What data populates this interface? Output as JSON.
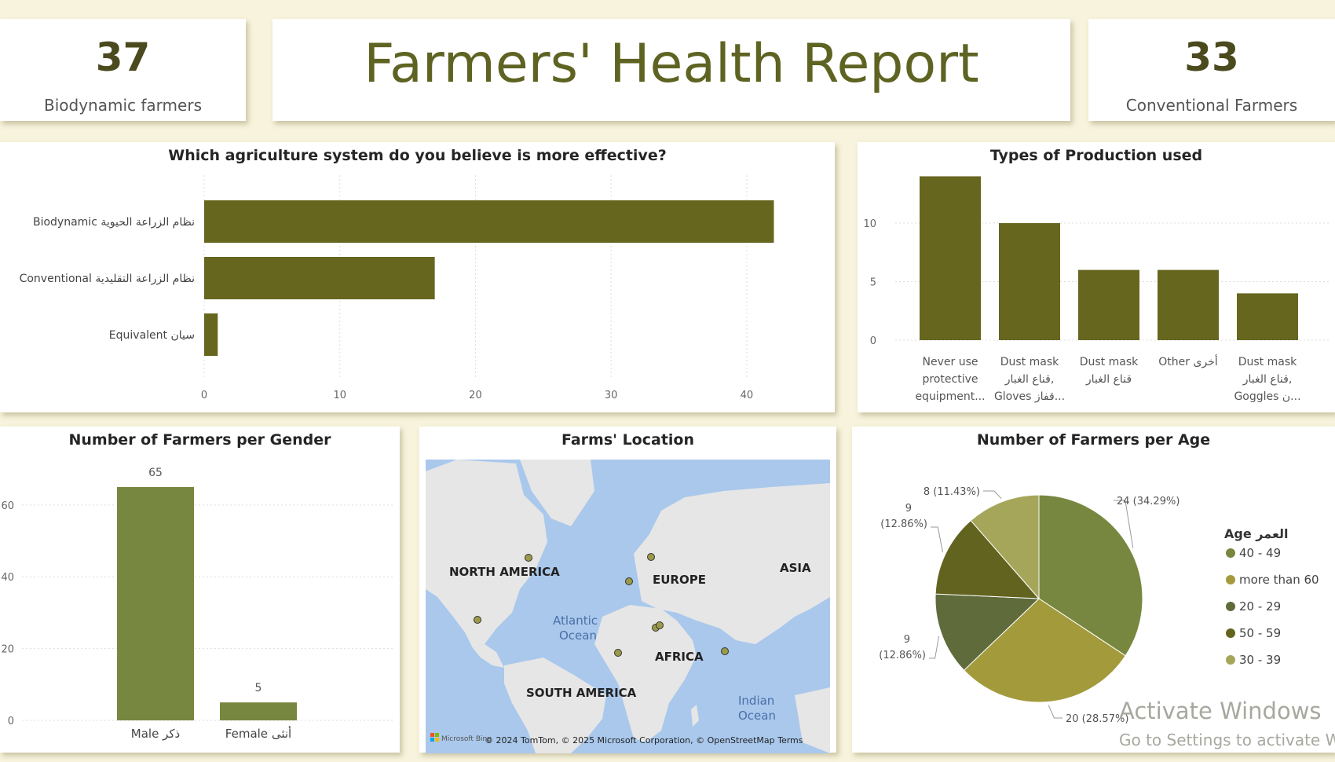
{
  "kpis": [
    {
      "value": "37",
      "label": "Biodynamic farmers"
    },
    {
      "value": "33",
      "label": "Conventional Farmers"
    }
  ],
  "report": {
    "title": "Farmers' Health Report"
  },
  "colors": {
    "olive": "#66661f",
    "male": "#78873f",
    "background": "#f7f3dc"
  },
  "chart_data": [
    {
      "id": "effective",
      "type": "bar",
      "orientation": "horizontal",
      "title": "Which agriculture system do you believe is more effective?",
      "categories": [
        "Biodynamic نظام الزراعة الحيوية",
        "Conventional نظام الزراعة التقليدية",
        "Equivalent سيان"
      ],
      "values": [
        42,
        17,
        1
      ],
      "xlim": [
        0,
        44
      ],
      "xticks": [
        "0",
        "10",
        "20",
        "30",
        "40"
      ],
      "grid": true
    },
    {
      "id": "production",
      "type": "bar",
      "title": "Types of Production used",
      "categories": [
        [
          "Never use",
          "protective",
          "equipment..."
        ],
        [
          "Dust mask",
          "قناع الغبار,",
          "Gloves قفاز..."
        ],
        [
          "Dust mask",
          "قناع الغبار"
        ],
        [
          "Other أخرى"
        ],
        [
          "Dust mask",
          "قناع الغبار,",
          "Goggles ن..."
        ]
      ],
      "values": [
        14,
        10,
        6,
        6,
        4
      ],
      "ylim": [
        0,
        14.5
      ],
      "yticks": [
        "0",
        "5",
        "10"
      ],
      "grid": true
    },
    {
      "id": "gender",
      "type": "bar",
      "title": "Number of Farmers per Gender",
      "categories": [
        "Male ذكر",
        "Female أنثى"
      ],
      "values": [
        65,
        5
      ],
      "data_labels": [
        "65",
        "5"
      ],
      "ylim": [
        0,
        65
      ],
      "yticks": [
        "0",
        "20",
        "40",
        "60"
      ],
      "grid": true
    },
    {
      "id": "age",
      "type": "pie",
      "title": "Number of Farmers per Age",
      "legend_title": "Age العمر",
      "legend_position": "right",
      "slices": [
        {
          "label": "40 - 49",
          "value": 24,
          "data_label": "24 (34.29%)",
          "color": "#78873f"
        },
        {
          "label": "more than 60",
          "value": 20,
          "data_label": "20 (28.57%)",
          "color": "#a39a3c"
        },
        {
          "label": "20 - 29",
          "value": 9,
          "data_label": "9 (12.86%)",
          "color": "#5f6b3b"
        },
        {
          "label": "50 - 59",
          "value": 9,
          "data_label": "9 (12.86%)",
          "color": "#636320"
        },
        {
          "label": "30 - 39",
          "value": 8,
          "data_label": "8 (11.43%)",
          "color": "#a6a65a"
        }
      ]
    }
  ],
  "map": {
    "title": "Farms' Location",
    "labels": [
      "NORTH AMERICA",
      "EUROPE",
      "ASIA",
      "AFRICA",
      "SOUTH AMERICA",
      "Atlantic",
      "Ocean",
      "Indian",
      "Ocean"
    ],
    "attribution": "© 2024 TomTom, © 2025 Microsoft Corporation, © OpenStreetMap Terms",
    "brand": "Microsoft Bing"
  },
  "watermark": {
    "line1": "Activate Windows",
    "line2": "Go to Settings to activate W"
  }
}
